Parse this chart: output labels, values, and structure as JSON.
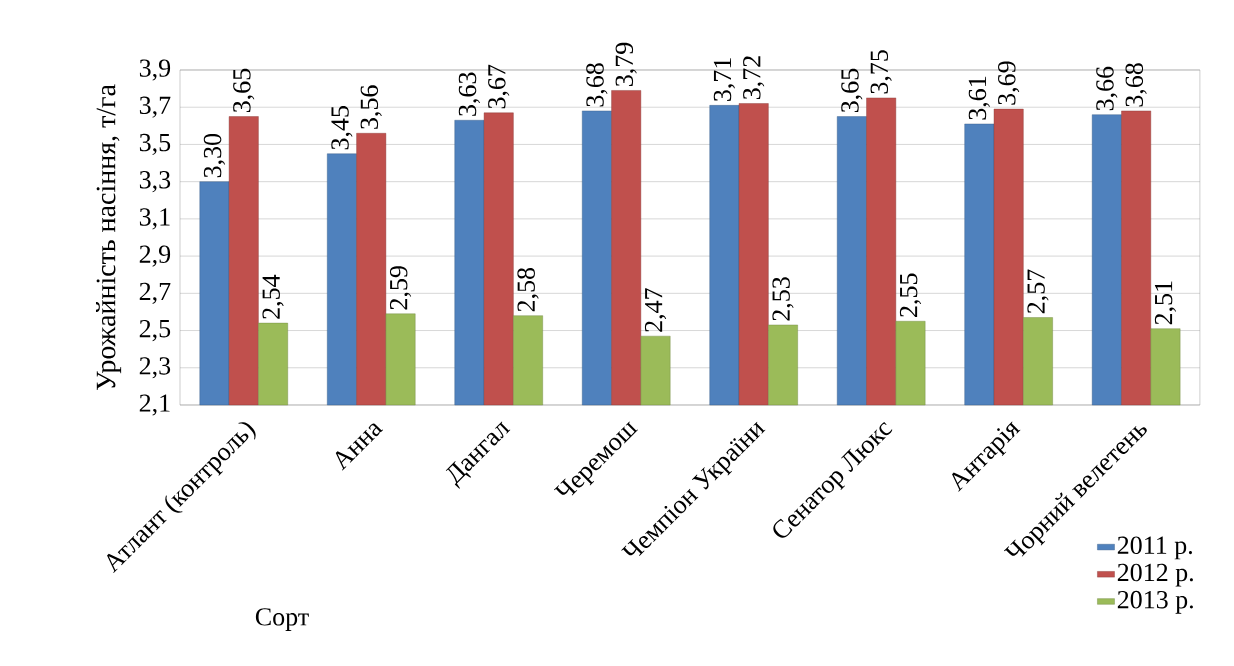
{
  "chart_data": {
    "type": "bar",
    "ylabel": "Урожайність насіння, т/га",
    "xlabel": "Сорт",
    "categories": [
      "Атлант (контроль)",
      "Анна",
      "Дангал",
      "Черемош",
      "Чемпіон України",
      "Сенатор Люкс",
      "Антарія",
      "Чорний велетень"
    ],
    "series": [
      {
        "name": "2011 р.",
        "color": "#4f81bd",
        "values": [
          3.3,
          3.45,
          3.63,
          3.68,
          3.71,
          3.65,
          3.61,
          3.66
        ],
        "value_labels": [
          "3,30",
          "3,45",
          "3,63",
          "3,68",
          "3,71",
          "3,65",
          "3,61",
          "3,66"
        ]
      },
      {
        "name": "2012 р.",
        "color": "#c0504d",
        "values": [
          3.65,
          3.56,
          3.67,
          3.79,
          3.72,
          3.75,
          3.69,
          3.68
        ],
        "value_labels": [
          "3,65",
          "3,56",
          "3,67",
          "3,79",
          "3,72",
          "3,75",
          "3,69",
          "3,68"
        ]
      },
      {
        "name": "2013 р.",
        "color": "#9bbb59",
        "values": [
          2.54,
          2.59,
          2.58,
          2.47,
          2.53,
          2.55,
          2.57,
          2.51
        ],
        "value_labels": [
          "2,54",
          "2,59",
          "2,58",
          "2,47",
          "2,53",
          "2,55",
          "2,57",
          "2,51"
        ]
      }
    ],
    "ylim": [
      2.1,
      3.9
    ],
    "yticks": [
      {
        "value": 2.1,
        "label": "2,1"
      },
      {
        "value": 2.3,
        "label": "2,3"
      },
      {
        "value": 2.5,
        "label": "2,5"
      },
      {
        "value": 2.7,
        "label": "2,7"
      },
      {
        "value": 2.9,
        "label": "2,9"
      },
      {
        "value": 3.1,
        "label": "3,1"
      },
      {
        "value": 3.3,
        "label": "3,3"
      },
      {
        "value": 3.5,
        "label": "3,5"
      },
      {
        "value": 3.7,
        "label": "3,7"
      },
      {
        "value": 3.9,
        "label": "3,9"
      }
    ],
    "grid": "y",
    "legend": "bottom right"
  }
}
